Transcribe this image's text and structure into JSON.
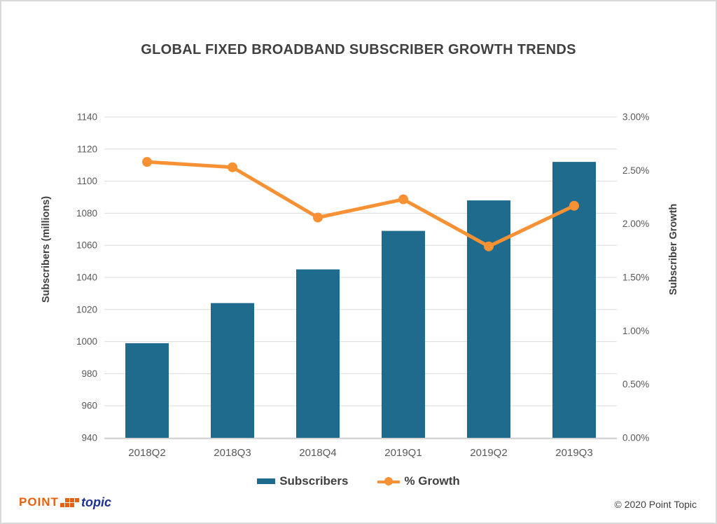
{
  "title": "GLOBAL FIXED BROADBAND SUBSCRIBER GROWTH TRENDS",
  "chart_data": {
    "type": "bar",
    "subtype": "combo-bar-line-dual-axis",
    "categories": [
      "2018Q2",
      "2018Q3",
      "2018Q4",
      "2019Q1",
      "2019Q2",
      "2019Q3"
    ],
    "series": [
      {
        "name": "Subscribers",
        "type": "bar",
        "axis": "left",
        "values": [
          999,
          1024,
          1045,
          1069,
          1088,
          1112
        ]
      },
      {
        "name": "% Growth",
        "type": "line",
        "axis": "right",
        "values": [
          2.58,
          2.53,
          2.06,
          2.23,
          1.79,
          2.17
        ]
      }
    ],
    "left_axis": {
      "title": "Subscribers (millions)",
      "min": 940,
      "max": 1140,
      "step": 20,
      "tick_labels": [
        "940",
        "960",
        "980",
        "1000",
        "1020",
        "1040",
        "1060",
        "1080",
        "1100",
        "1120",
        "1140"
      ]
    },
    "right_axis": {
      "title": "Subscriber Growth",
      "min": 0,
      "max": 3,
      "step": 0.5,
      "tick_labels": [
        "0.00%",
        "0.50%",
        "1.00%",
        "1.50%",
        "2.00%",
        "2.50%",
        "3.00%"
      ]
    },
    "grid": "horizontal-only",
    "legend_position": "bottom"
  },
  "legend": {
    "subscribers_label": "Subscribers",
    "growth_label": "% Growth"
  },
  "footer": {
    "logo_point": "POINT",
    "logo_topic": "topic",
    "copyright": "© 2020 Point Topic"
  },
  "colors": {
    "bar": "#1f6b8d",
    "line": "#f79133",
    "grid": "#dcdcdc",
    "axis_line": "#d5d5d5",
    "title_text": "#404040",
    "tick_text": "#595959",
    "logo_orange": "#e8610f",
    "logo_blue": "#1f3094"
  }
}
